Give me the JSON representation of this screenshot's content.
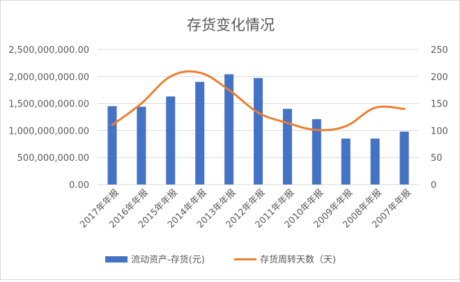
{
  "chart_data": {
    "type": "bar",
    "title": "存货变化情况",
    "categories": [
      "2017年年报",
      "2016年年报",
      "2015年年报",
      "2014年年报",
      "2013年年报",
      "2012年年报",
      "2011年年报",
      "2010年年报",
      "2009年年报",
      "2008年年报",
      "2007年年报"
    ],
    "series": [
      {
        "name": "流动资产-存货(元)",
        "type": "bar",
        "axis": "left",
        "color": "#4472c4",
        "values": [
          1450000000,
          1440000000,
          1630000000,
          1900000000,
          2040000000,
          1970000000,
          1400000000,
          1210000000,
          850000000,
          850000000,
          980000000
        ]
      },
      {
        "name": "存货周转天数（天)",
        "type": "line",
        "axis": "right",
        "color": "#ed7d31",
        "values": [
          110,
          150,
          200,
          207,
          175,
          133,
          114,
          101,
          108,
          142,
          140
        ]
      }
    ],
    "y_left": {
      "ylim": [
        0,
        2500000000
      ],
      "ticks": [
        "0.00",
        "500,000,000.00",
        "1,000,000,000.00",
        "1,500,000,000.00",
        "2,000,000,000.00",
        "2,500,000,000.00"
      ]
    },
    "y_right": {
      "ylim": [
        0,
        250
      ],
      "ticks": [
        "0",
        "50",
        "100",
        "150",
        "200",
        "250"
      ]
    },
    "grid": true,
    "legend_position": "bottom"
  }
}
